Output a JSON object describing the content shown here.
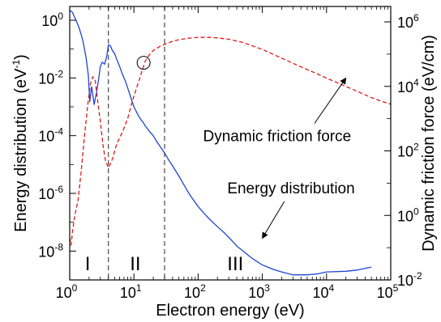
{
  "chart_data": {
    "type": "line",
    "xlabel": "Electron energy (eV)",
    "ylabel_left": "Energy distribution (eV",
    "ylabel_left_sup": "-1",
    "ylabel_left_close": ")",
    "ylabel_right": "Dynamic friction force (eV/cm)",
    "xscale": "log",
    "xlim": [
      1,
      100000
    ],
    "ylim_left": [
      1e-09,
      3
    ],
    "ylim_right": [
      0.01,
      3000000
    ],
    "x_ticks": [
      {
        "base": "10",
        "exp": "0",
        "value": 1
      },
      {
        "base": "10",
        "exp": "1",
        "value": 10
      },
      {
        "base": "10",
        "exp": "2",
        "value": 100
      },
      {
        "base": "10",
        "exp": "3",
        "value": 1000
      },
      {
        "base": "10",
        "exp": "4",
        "value": 10000
      },
      {
        "base": "10",
        "exp": "5",
        "value": 100000
      }
    ],
    "y_left_ticks": [
      {
        "base": "10",
        "exp": "0",
        "value": 1
      },
      {
        "base": "10",
        "exp": "-2",
        "value": 0.01
      },
      {
        "base": "10",
        "exp": "-4",
        "value": 0.0001
      },
      {
        "base": "10",
        "exp": "-6",
        "value": 1e-06
      },
      {
        "base": "10",
        "exp": "-8",
        "value": 1e-08
      }
    ],
    "y_right_ticks": [
      {
        "base": "10",
        "exp": "6",
        "value": 1000000
      },
      {
        "base": "10",
        "exp": "4",
        "value": 10000
      },
      {
        "base": "10",
        "exp": "2",
        "value": 100
      },
      {
        "base": "10",
        "exp": "0",
        "value": 1
      },
      {
        "base": "10",
        "exp": "-2",
        "value": 0.01
      }
    ],
    "series": [
      {
        "name": "Energy distribution",
        "axis": "left",
        "color": "#1f45d6",
        "style": "solid",
        "x": [
          1.0,
          1.1,
          1.25,
          1.4,
          1.6,
          1.8,
          1.95,
          2.05,
          2.2,
          2.4,
          2.6,
          2.8,
          3.0,
          3.2,
          3.5,
          3.8,
          4.0,
          4.3,
          4.6,
          5.0,
          5.5,
          6.0,
          6.5,
          7.0,
          7.5,
          8.0,
          8.5,
          9.0,
          9.5,
          10.0,
          11.0,
          12.0,
          13.0,
          14.0,
          15.0,
          17.0,
          20.0,
          23.0,
          26.0,
          30.0,
          35.0,
          40.0,
          50.0,
          60.0,
          70.0,
          80.0,
          100.0,
          130.0,
          150.0,
          200.0,
          250.0,
          300.0,
          400.0,
          500.0,
          700.0,
          1000.0,
          1500.0,
          2000.0,
          3000.0,
          5000.0,
          7000.0,
          10000.0,
          20000.0,
          30000.0,
          50000.0
        ],
        "y": [
          2.2,
          1.9,
          1.0,
          0.55,
          0.2,
          0.05,
          0.012,
          0.0015,
          0.005,
          0.0012,
          0.003,
          0.008,
          0.025,
          0.035,
          0.03,
          0.06,
          0.14,
          0.13,
          0.09,
          0.07,
          0.04,
          0.025,
          0.015,
          0.01,
          0.007,
          0.0045,
          0.003,
          0.002,
          0.0014,
          0.001,
          0.00065,
          0.00045,
          0.00035,
          0.00028,
          0.00022,
          0.00015,
          0.0001,
          6e-05,
          4e-05,
          2.5e-05,
          1.4e-05,
          9e-06,
          4e-06,
          2e-06,
          1.1e-06,
          7e-07,
          3.5e-07,
          1.8e-07,
          1.3e-07,
          7e-08,
          4.5e-08,
          3e-08,
          1.5e-08,
          1e-08,
          5.5e-09,
          3.3e-09,
          2.3e-09,
          1.9e-09,
          1.5e-09,
          1.5e-09,
          1.6e-09,
          1.9e-09,
          2e-09,
          2.2e-09,
          2.8e-09
        ]
      },
      {
        "name": "Dynamic friction force",
        "axis": "right",
        "color": "#e01818",
        "style": "dashed",
        "x": [
          1.0,
          1.05,
          1.1,
          1.2,
          1.35,
          1.5,
          1.7,
          1.9,
          2.1,
          2.3,
          2.5,
          2.7,
          3.0,
          3.3,
          3.6,
          4.0,
          4.3,
          4.7,
          5.0,
          5.5,
          6.0,
          7.0,
          8.0,
          9.0,
          10.0,
          11.0,
          12.0,
          13.0,
          14.0,
          15.0,
          17.0,
          20.0,
          25.0,
          30.0,
          40.0,
          50.0,
          70.0,
          100.0,
          150.0,
          200.0,
          300.0,
          500.0,
          700.0,
          1000.0,
          2000.0,
          3000.0,
          5000.0,
          7000.0,
          10000.0,
          20000.0,
          30000.0,
          50000.0,
          70000.0,
          100000.0
        ],
        "y": [
          0.2,
          0.12,
          0.3,
          1.0,
          3.0,
          20.0,
          300.0,
          2500.0,
          12000.0,
          20000.0,
          15000.0,
          4000.0,
          800.0,
          150.0,
          50.0,
          30.0,
          40.0,
          60.0,
          100.0,
          180.0,
          250.0,
          500.0,
          1000.0,
          2500.0,
          5000.0,
          9000.0,
          15000.0,
          25000.0,
          40000.0,
          60000.0,
          90000.0,
          130000.0,
          170000.0,
          200000.0,
          250000.0,
          280000.0,
          310000.0,
          330000.0,
          330000.0,
          320000.0,
          290000.0,
          230000.0,
          180000.0,
          140000.0,
          75000.0,
          52000.0,
          33000.0,
          25000.0,
          18000.0,
          10000.0,
          7000.0,
          4500.0,
          3500.0,
          2800.0
        ]
      }
    ],
    "vlines": [
      4.0,
      30.0
    ],
    "region_labels": [
      {
        "text": "I",
        "x": 1.9
      },
      {
        "text": "II",
        "x": 10.5
      },
      {
        "text": "III",
        "x": 380
      }
    ],
    "annotations": [
      {
        "text": "Dynamic friction force",
        "text_x": 1700,
        "text_y_right": 200,
        "arrow_from_x": 6500,
        "arrow_to_x": 20000,
        "arrow_to_y_right": 18000
      },
      {
        "text": "Energy distribution",
        "text_x": 2800,
        "text_y_left": 1e-06,
        "arrow_from_x": 2200,
        "arrow_to_x": 1000,
        "arrow_to_y_left": 2.8e-08
      }
    ],
    "marker_circle": {
      "x": 15.0,
      "y_right": 48000
    }
  }
}
